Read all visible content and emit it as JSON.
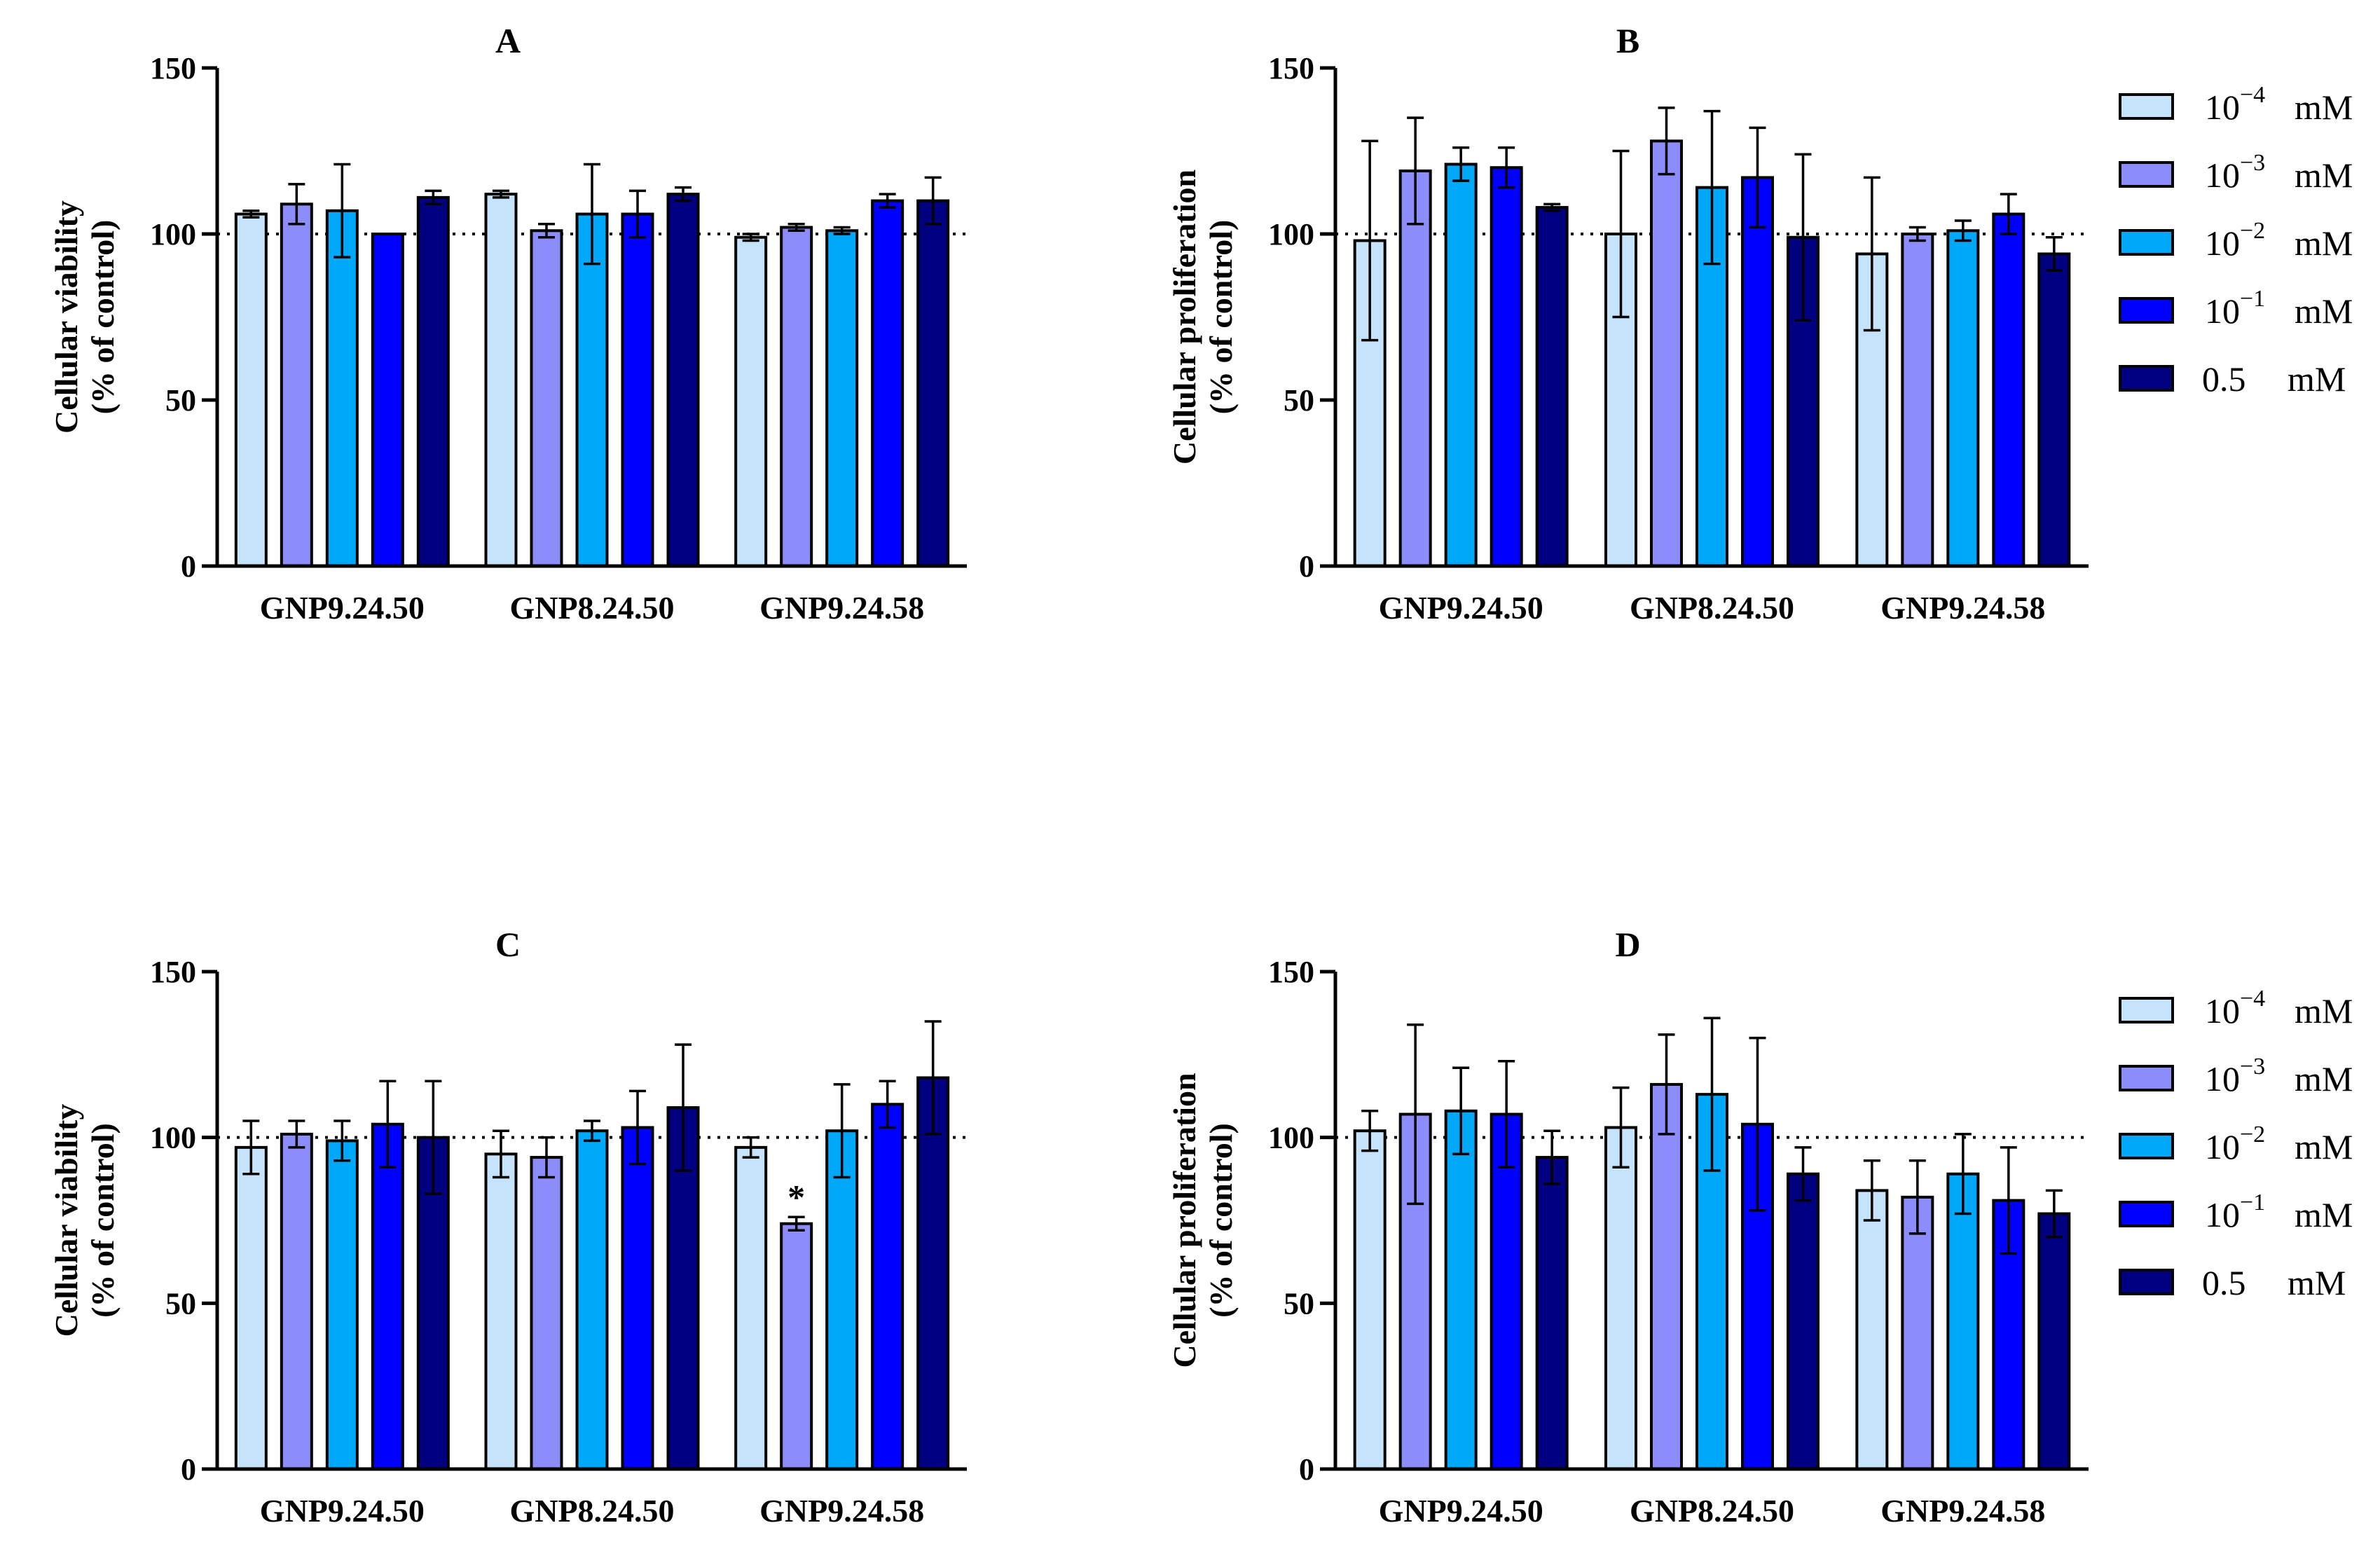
{
  "colors": [
    "#C5E3FA",
    "#8C8CFA",
    "#00A8FA",
    "#0000FF",
    "#000080"
  ],
  "legend": [
    {
      "base": "10",
      "exp": "−4",
      "unit": "mM"
    },
    {
      "base": "10",
      "exp": "−3",
      "unit": "mM"
    },
    {
      "base": "10",
      "exp": "−2",
      "unit": "mM"
    },
    {
      "base": "10",
      "exp": "−1",
      "unit": "mM"
    },
    {
      "base": "0.5",
      "exp": "",
      "unit": "mM"
    }
  ],
  "chart_data": [
    {
      "type": "bar",
      "title": "A",
      "ylabel": [
        "Cellular viability",
        "(% of control)"
      ],
      "categories": [
        "GNP9.24.50",
        "GNP8.24.50",
        "GNP9.24.58"
      ],
      "ylim": [
        0,
        150
      ],
      "yticks": [
        0,
        50,
        100,
        150
      ],
      "reference_line": 100,
      "legend": false,
      "series_names": [
        "10^-4 mM",
        "10^-3 mM",
        "10^-2 mM",
        "10^-1 mM",
        "0.5 mM"
      ],
      "values": [
        [
          106,
          109,
          107,
          100,
          111
        ],
        [
          112,
          101,
          106,
          106,
          112
        ],
        [
          99,
          102,
          101,
          110,
          110
        ]
      ],
      "errors": [
        [
          1,
          6,
          14,
          0,
          2
        ],
        [
          1,
          2,
          15,
          7,
          2
        ],
        [
          1,
          1,
          1,
          2,
          7
        ]
      ],
      "annotations": []
    },
    {
      "type": "bar",
      "title": "B",
      "ylabel": [
        "Cellular proliferation",
        "(% of control)"
      ],
      "categories": [
        "GNP9.24.50",
        "GNP8.24.50",
        "GNP9.24.58"
      ],
      "ylim": [
        0,
        150
      ],
      "yticks": [
        0,
        50,
        100,
        150
      ],
      "reference_line": 100,
      "legend": true,
      "series_names": [
        "10^-4 mM",
        "10^-3 mM",
        "10^-2 mM",
        "10^-1 mM",
        "0.5 mM"
      ],
      "values": [
        [
          98,
          119,
          121,
          120,
          108
        ],
        [
          100,
          128,
          114,
          117,
          99
        ],
        [
          94,
          100,
          101,
          106,
          94
        ]
      ],
      "errors": [
        [
          30,
          16,
          5,
          6,
          1
        ],
        [
          25,
          10,
          23,
          15,
          25
        ],
        [
          23,
          2,
          3,
          6,
          5
        ]
      ],
      "annotations": []
    },
    {
      "type": "bar",
      "title": "C",
      "ylabel": [
        "Cellular viability",
        "(% of control)"
      ],
      "categories": [
        "GNP9.24.50",
        "GNP8.24.50",
        "GNP9.24.58"
      ],
      "ylim": [
        0,
        150
      ],
      "yticks": [
        0,
        50,
        100,
        150
      ],
      "reference_line": 100,
      "legend": false,
      "series_names": [
        "10^-4 mM",
        "10^-3 mM",
        "10^-2 mM",
        "10^-1 mM",
        "0.5 mM"
      ],
      "values": [
        [
          97,
          101,
          99,
          104,
          100
        ],
        [
          95,
          94,
          102,
          103,
          109
        ],
        [
          97,
          74,
          102,
          110,
          118
        ]
      ],
      "errors": [
        [
          8,
          4,
          6,
          13,
          17
        ],
        [
          7,
          6,
          3,
          11,
          19
        ],
        [
          3,
          2,
          14,
          7,
          17
        ]
      ],
      "annotations": [
        {
          "group": 2,
          "series": 1,
          "text": "*"
        }
      ]
    },
    {
      "type": "bar",
      "title": "D",
      "ylabel": [
        "Cellular proliferation",
        "(% of control)"
      ],
      "categories": [
        "GNP9.24.50",
        "GNP8.24.50",
        "GNP9.24.58"
      ],
      "ylim": [
        0,
        150
      ],
      "yticks": [
        0,
        50,
        100,
        150
      ],
      "reference_line": 100,
      "legend": true,
      "series_names": [
        "10^-4 mM",
        "10^-3 mM",
        "10^-2 mM",
        "10^-1 mM",
        "0.5 mM"
      ],
      "values": [
        [
          102,
          107,
          108,
          107,
          94
        ],
        [
          103,
          116,
          113,
          104,
          89
        ],
        [
          84,
          82,
          89,
          81,
          77
        ]
      ],
      "errors": [
        [
          6,
          27,
          13,
          16,
          8
        ],
        [
          12,
          15,
          23,
          26,
          8
        ],
        [
          9,
          11,
          12,
          16,
          7
        ]
      ],
      "annotations": []
    }
  ]
}
